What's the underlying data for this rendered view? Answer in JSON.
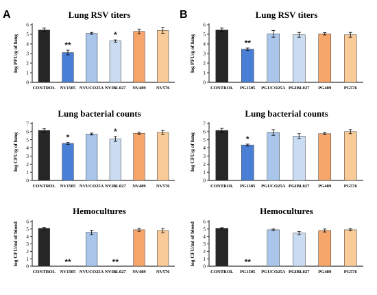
{
  "panels": [
    {
      "label": "A"
    },
    {
      "label": "B"
    }
  ],
  "chart_data": [
    {
      "type": "bar",
      "panel": "A",
      "title": "Lung RSV titers",
      "ylabel": "log PFU/g of lung",
      "ylim": [
        0,
        6
      ],
      "yticks": [
        0,
        1,
        2,
        3,
        4,
        5,
        6
      ],
      "categories": [
        "CONTROL",
        "NV1505",
        "NVUCO25A",
        "NVIBL027",
        "NV489",
        "NV576"
      ],
      "colors": [
        "#262626",
        "#4a7fd6",
        "#a9c6ea",
        "#c9dcf1",
        "#f6a56b",
        "#f9cb98"
      ],
      "values": [
        5.45,
        3.1,
        5.1,
        4.3,
        5.3,
        5.4
      ],
      "errors": [
        0.2,
        0.25,
        0.1,
        0.12,
        0.25,
        0.3
      ],
      "significance": [
        "",
        "**",
        "",
        "*",
        "",
        ""
      ]
    },
    {
      "type": "bar",
      "panel": "B",
      "title": "Lung RSV titers",
      "ylabel": "log PFU/g of lung",
      "ylim": [
        0,
        6
      ],
      "yticks": [
        0,
        1,
        2,
        3,
        4,
        5,
        6
      ],
      "categories": [
        "CONTROL",
        "PG1505",
        "PGUCO25A",
        "PGIBL027",
        "PG489",
        "PG576"
      ],
      "colors": [
        "#262626",
        "#4a7fd6",
        "#a9c6ea",
        "#c9dcf1",
        "#f6a56b",
        "#f9cb98"
      ],
      "values": [
        5.45,
        3.45,
        5.05,
        4.95,
        5.05,
        4.95
      ],
      "errors": [
        0.2,
        0.12,
        0.35,
        0.25,
        0.12,
        0.25
      ],
      "significance": [
        "",
        "**",
        "",
        "",
        "",
        ""
      ]
    },
    {
      "type": "bar",
      "panel": "A",
      "title": "Lung bacterial counts",
      "ylabel": "log CFU/g of lung",
      "ylim": [
        0,
        7
      ],
      "yticks": [
        0,
        1,
        2,
        3,
        4,
        5,
        6,
        7
      ],
      "categories": [
        "CONTROL",
        "NV1505",
        "NVUCO25A",
        "NVIBL027",
        "NV489",
        "NV576"
      ],
      "colors": [
        "#262626",
        "#4a7fd6",
        "#a9c6ea",
        "#c9dcf1",
        "#f6a56b",
        "#f9cb98"
      ],
      "values": [
        6.15,
        4.55,
        5.7,
        5.1,
        5.8,
        5.9
      ],
      "errors": [
        0.2,
        0.12,
        0.12,
        0.3,
        0.15,
        0.25
      ],
      "significance": [
        "",
        "*",
        "",
        "*",
        "",
        ""
      ]
    },
    {
      "type": "bar",
      "panel": "B",
      "title": "Lung bacterial counts",
      "ylabel": "log CFU/g of lung",
      "ylim": [
        0,
        7
      ],
      "yticks": [
        0,
        1,
        2,
        3,
        4,
        5,
        6,
        7
      ],
      "categories": [
        "CONTROL",
        "PG1505",
        "PGUCO25A",
        "PGIBL027",
        "PG489",
        "PG576"
      ],
      "colors": [
        "#262626",
        "#4a7fd6",
        "#a9c6ea",
        "#c9dcf1",
        "#f6a56b",
        "#f9cb98"
      ],
      "values": [
        6.15,
        4.35,
        5.9,
        5.45,
        5.75,
        6.0
      ],
      "errors": [
        0.25,
        0.12,
        0.35,
        0.3,
        0.12,
        0.25
      ],
      "significance": [
        "",
        "*",
        "",
        "",
        "",
        ""
      ]
    },
    {
      "type": "bar",
      "panel": "A",
      "title": "Hemocultures",
      "ylabel": "log CFU/ml of blood",
      "ylim": [
        0,
        6
      ],
      "yticks": [
        0,
        1,
        2,
        3,
        4,
        5,
        6
      ],
      "categories": [
        "CONTROL",
        "NV1505",
        "NVUCO25A",
        "NVIBL027",
        "NV489",
        "NV576"
      ],
      "colors": [
        "#262626",
        "#4a7fd6",
        "#a9c6ea",
        "#c9dcf1",
        "#f6a56b",
        "#f9cb98"
      ],
      "values": [
        5.1,
        0,
        4.55,
        0,
        4.9,
        4.8
      ],
      "errors": [
        0.1,
        0,
        0.3,
        0,
        0.2,
        0.3
      ],
      "significance": [
        "",
        "**",
        "",
        "**",
        "",
        ""
      ]
    },
    {
      "type": "bar",
      "panel": "B",
      "title": "Hemocultures",
      "ylabel": "log CFU/ml of blood",
      "ylim": [
        0,
        6
      ],
      "yticks": [
        0,
        1,
        2,
        3,
        4,
        5,
        6
      ],
      "categories": [
        "CONTROL",
        "PG1505",
        "PGUCO25A",
        "PGIBL027",
        "PG489",
        "PG576"
      ],
      "colors": [
        "#262626",
        "#4a7fd6",
        "#a9c6ea",
        "#c9dcf1",
        "#f6a56b",
        "#f9cb98"
      ],
      "values": [
        5.1,
        0,
        4.9,
        4.45,
        4.8,
        4.9
      ],
      "errors": [
        0.08,
        0,
        0.1,
        0.2,
        0.2,
        0.15
      ],
      "significance": [
        "",
        "**",
        "",
        "",
        "",
        ""
      ]
    }
  ]
}
